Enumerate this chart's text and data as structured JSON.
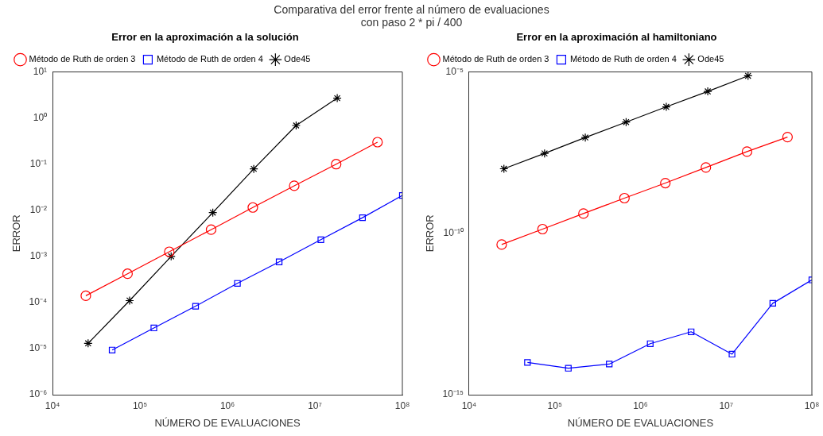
{
  "chart_data": [
    {
      "type": "line",
      "title": "Error en la aproximación a la solución",
      "xlabel": "NÚMERO DE EVALUACIONES",
      "ylabel": "ERROR",
      "log": "xy",
      "legend": "top left",
      "grid": false,
      "annotations": [
        "Comparativa del error frente al número de evaluaciones",
        "con paso 2 * pi / 400"
      ],
      "xlim": [
        10000,
        100000000
      ],
      "xticks": [
        {
          "value": 10000,
          "label": "10⁴"
        },
        {
          "value": 100000,
          "label": "10⁵"
        },
        {
          "value": 1000000,
          "label": "10⁶"
        },
        {
          "value": 10000000,
          "label": "10⁷"
        },
        {
          "value": 100000000,
          "label": "10⁸"
        }
      ],
      "ylim": [
        1e-06,
        10
      ],
      "yticks": [
        {
          "value": 1e-06,
          "label": "10⁻⁶"
        },
        {
          "value": 1e-05,
          "label": "10⁻⁵"
        },
        {
          "value": 0.0001,
          "label": "10⁻⁴"
        },
        {
          "value": 0.001,
          "label": "10⁻³"
        },
        {
          "value": 0.01,
          "label": "10⁻²"
        },
        {
          "value": 0.1,
          "label": "10⁻¹"
        },
        {
          "value": 1,
          "label": "10⁰"
        },
        {
          "value": 10,
          "label": "10¹"
        }
      ],
      "series": [
        {
          "name": "Método de Ruth de orden 3",
          "color": "#ff0000",
          "marker": "circle",
          "x": [
            24000,
            72000,
            216000,
            650000,
            1950000,
            5800000,
            17500000,
            52000000
          ],
          "values": [
            0.00014,
            0.00042,
            0.00126,
            0.0038,
            0.0115,
            0.034,
            0.1,
            0.3
          ]
        },
        {
          "name": "Método de Ruth de orden 4",
          "color": "#0000ff",
          "marker": "square",
          "x": [
            48000,
            144000,
            432000,
            1300000,
            3900000,
            11700000,
            35000000,
            100000000
          ],
          "values": [
            9.3e-06,
            2.8e-05,
            8.3e-05,
            0.00026,
            0.00076,
            0.0023,
            0.0069,
            0.021
          ]
        },
        {
          "name": "Ode45",
          "color": "#000000",
          "marker": "cross",
          "x": [
            25500,
            76000,
            227000,
            680000,
            2000000,
            6100000,
            18000000
          ],
          "values": [
            1.3e-05,
            0.00011,
            0.001,
            0.0089,
            0.079,
            0.69,
            2.7
          ]
        }
      ]
    },
    {
      "type": "line",
      "title": "Error en la aproximación al hamiltoniano",
      "xlabel": "NÚMERO DE EVALUACIONES",
      "ylabel": "ERROR",
      "log": "xy",
      "legend": "top left",
      "grid": false,
      "xlim": [
        10000,
        100000000
      ],
      "xticks": [
        {
          "value": 10000,
          "label": "10⁴"
        },
        {
          "value": 100000,
          "label": "10⁵"
        },
        {
          "value": 1000000,
          "label": "10⁶"
        },
        {
          "value": 10000000,
          "label": "10⁷"
        },
        {
          "value": 100000000,
          "label": "10⁸"
        }
      ],
      "ylim": [
        1e-15,
        1e-05
      ],
      "yticks": [
        {
          "value": 1e-15,
          "label": "10⁻¹⁵"
        },
        {
          "value": 1e-10,
          "label": "10⁻¹⁰"
        },
        {
          "value": 1e-05,
          "label": "10⁻⁵"
        }
      ],
      "series": [
        {
          "name": "Método de Ruth de orden 3",
          "color": "#ff0000",
          "marker": "circle",
          "x": [
            24000,
            72000,
            216000,
            650000,
            1950000,
            5800000,
            17500000,
            52000000
          ],
          "values": [
            4.5e-11,
            1.35e-10,
            4.1e-10,
            1.23e-09,
            3.6e-09,
            1.1e-08,
            3.4e-08,
            9.6e-08
          ]
        },
        {
          "name": "Método de Ruth de orden 4",
          "color": "#0000ff",
          "marker": "square",
          "x": [
            48000,
            144000,
            432000,
            1300000,
            3900000,
            11700000,
            35000000,
            100000000
          ],
          "values": [
            1e-14,
            6.6e-15,
            8.9e-15,
            3.8e-14,
            8.9e-14,
            1.8e-14,
            6.8e-13,
            3.6e-12
          ]
        },
        {
          "name": "Ode45",
          "color": "#000000",
          "marker": "cross",
          "x": [
            25500,
            76000,
            227000,
            680000,
            2000000,
            6100000,
            18000000
          ],
          "values": [
            1e-08,
            3e-08,
            9.3e-08,
            2.8e-07,
            8.3e-07,
            2.5e-06,
            7.6e-06
          ]
        }
      ]
    }
  ]
}
